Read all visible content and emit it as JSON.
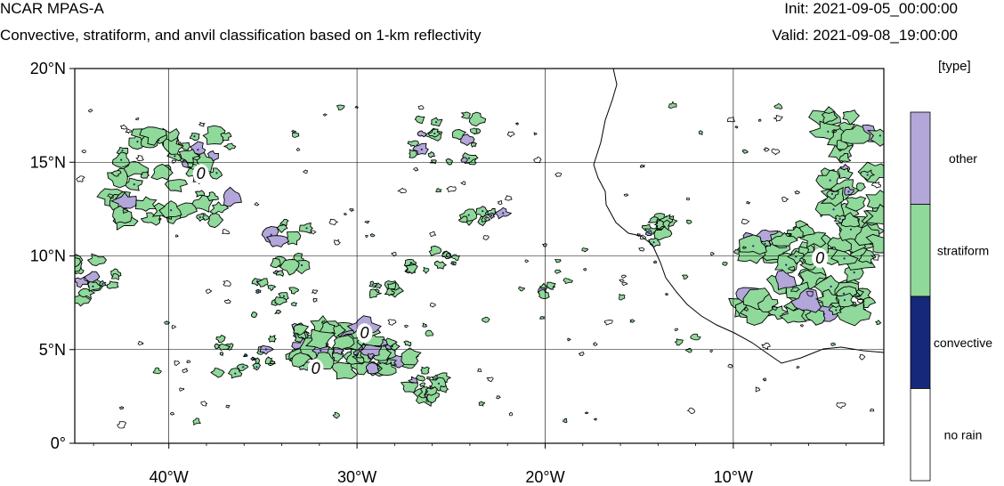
{
  "header": {
    "title": "NCAR MPAS-A",
    "subtitle": "Convective, stratiform, and anvil classification based on 1-km reflectivity",
    "init": "Init: 2021-09-05_00:00:00",
    "valid": "Valid: 2021-09-08_19:00:00"
  },
  "colorbar": {
    "units": "[type]",
    "categories": [
      {
        "label": "other",
        "color": "#b3a6d9"
      },
      {
        "label": "stratiform",
        "color": "#8fd99a"
      },
      {
        "label": "convective",
        "color": "#15287a"
      },
      {
        "label": "no rain",
        "color": "#ffffff"
      }
    ]
  },
  "map": {
    "lon_range": [
      -45,
      -2
    ],
    "lat_range": [
      0,
      20
    ],
    "y_ticks": [
      {
        "value": 20,
        "label": "20°N"
      },
      {
        "value": 15,
        "label": "15°N"
      },
      {
        "value": 10,
        "label": "10°N"
      },
      {
        "value": 5,
        "label": "5°N"
      },
      {
        "value": 0,
        "label": "0°"
      }
    ],
    "x_ticks": [
      {
        "value": -40,
        "label": "40°W"
      },
      {
        "value": -30,
        "label": "30°W"
      },
      {
        "value": -20,
        "label": "20°W"
      },
      {
        "value": -10,
        "label": "10°W"
      }
    ],
    "contour_labels": [
      {
        "text": "0",
        "lon": -38.3,
        "lat": 14.1
      },
      {
        "text": "0",
        "lon": -29.6,
        "lat": 5.6
      },
      {
        "text": "0",
        "lon": -32.2,
        "lat": 3.7
      },
      {
        "text": "0",
        "lon": -5.4,
        "lat": 9.6
      }
    ],
    "colors": {
      "stratiform": "#8fd99a",
      "other": "#b3a6d9",
      "convective": "#15287a",
      "coastline": "#000000"
    }
  }
}
